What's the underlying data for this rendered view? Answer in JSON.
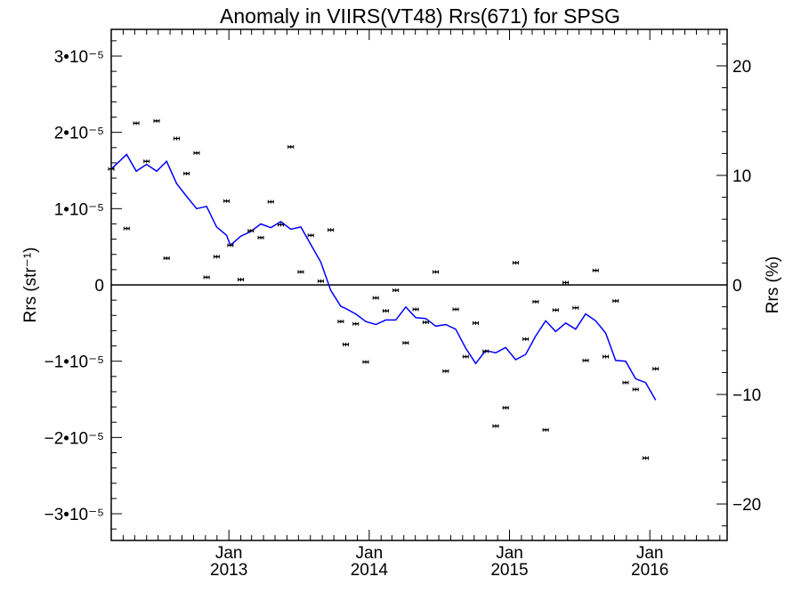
{
  "chart_data": {
    "type": "scatter",
    "title": "Anomaly in VIIRS(VT48) Rrs(671) for SPSG",
    "ylabel": "Rrs (str⁻¹)",
    "y2label": "Rrs (%)",
    "xlim": [
      "2012-03-01",
      "2016-07-20"
    ],
    "ylim": [
      -3.35e-05,
      3.35e-05
    ],
    "y2lim": [
      -23.33,
      23.33
    ],
    "grid": false,
    "legend": "none",
    "zero_line": true,
    "x_ticks": [
      {
        "date": "2013-01-01",
        "label": "Jan",
        "year": "2013"
      },
      {
        "date": "2014-01-01",
        "label": "Jan",
        "year": "2014"
      },
      {
        "date": "2015-01-01",
        "label": "Jan",
        "year": "2015"
      },
      {
        "date": "2016-01-01",
        "label": "Jan",
        "year": "2016"
      }
    ],
    "y_ticks": [
      {
        "value": 3e-05,
        "label": "3•10⁻⁵"
      },
      {
        "value": 2e-05,
        "label": "2•10⁻⁵"
      },
      {
        "value": 1e-05,
        "label": "1•10⁻⁵"
      },
      {
        "value": 0,
        "label": "0"
      },
      {
        "value": -1e-05,
        "label": "−1•10⁻⁵"
      },
      {
        "value": -2e-05,
        "label": "−2•10⁻⁵"
      },
      {
        "value": -3e-05,
        "label": "−3•10⁻⁵"
      }
    ],
    "y2_ticks": [
      {
        "value": 20,
        "label": "20"
      },
      {
        "value": 10,
        "label": "10"
      },
      {
        "value": 0,
        "label": "0"
      },
      {
        "value": -10,
        "label": "−10"
      },
      {
        "value": -20,
        "label": "−20"
      }
    ],
    "series": [
      {
        "style": "error-bar points",
        "color": "#000000",
        "points": [
          {
            "x": "2012-03-01",
            "y": 1.52e-05
          },
          {
            "x": "2012-04-10",
            "y": 7.4e-06
          },
          {
            "x": "2012-05-05",
            "y": 2.12e-05
          },
          {
            "x": "2012-06-01",
            "y": 1.62e-05
          },
          {
            "x": "2012-06-27",
            "y": 2.15e-05
          },
          {
            "x": "2012-07-23",
            "y": 3.5e-06
          },
          {
            "x": "2012-08-18",
            "y": 1.92e-05
          },
          {
            "x": "2012-09-13",
            "y": 1.46e-05
          },
          {
            "x": "2012-10-09",
            "y": 1.73e-05
          },
          {
            "x": "2012-11-04",
            "y": 1e-06
          },
          {
            "x": "2012-11-30",
            "y": 3.7e-06
          },
          {
            "x": "2012-12-26",
            "y": 1.1e-05
          },
          {
            "x": "2013-01-05",
            "y": 5.2e-06
          },
          {
            "x": "2013-02-01",
            "y": 7e-07
          },
          {
            "x": "2013-02-27",
            "y": 7.1e-06
          },
          {
            "x": "2013-03-25",
            "y": 6.2e-06
          },
          {
            "x": "2013-04-20",
            "y": 1.09e-05
          },
          {
            "x": "2013-05-16",
            "y": 7.9e-06
          },
          {
            "x": "2013-06-11",
            "y": 1.81e-05
          },
          {
            "x": "2013-07-07",
            "y": 1.7e-06
          },
          {
            "x": "2013-08-02",
            "y": 6.5e-06
          },
          {
            "x": "2013-08-28",
            "y": 5e-07
          },
          {
            "x": "2013-09-23",
            "y": 7.2e-06
          },
          {
            "x": "2013-10-19",
            "y": -4.8e-06
          },
          {
            "x": "2013-11-01",
            "y": -7.8e-06
          },
          {
            "x": "2013-11-27",
            "y": -5.1e-06
          },
          {
            "x": "2013-12-23",
            "y": -1.01e-05
          },
          {
            "x": "2014-01-18",
            "y": -1.7e-06
          },
          {
            "x": "2014-02-13",
            "y": -3.4e-06
          },
          {
            "x": "2014-03-11",
            "y": -7e-07
          },
          {
            "x": "2014-04-06",
            "y": -7.6e-06
          },
          {
            "x": "2014-05-02",
            "y": -3.2e-06
          },
          {
            "x": "2014-05-28",
            "y": -4.9e-06
          },
          {
            "x": "2014-06-23",
            "y": 1.7e-06
          },
          {
            "x": "2014-07-19",
            "y": -1.13e-05
          },
          {
            "x": "2014-08-14",
            "y": -3.2e-06
          },
          {
            "x": "2014-09-09",
            "y": -9.4e-06
          },
          {
            "x": "2014-10-05",
            "y": -5e-06
          },
          {
            "x": "2014-10-31",
            "y": -8.7e-06
          },
          {
            "x": "2014-11-26",
            "y": -1.85e-05
          },
          {
            "x": "2014-12-22",
            "y": -1.61e-05
          },
          {
            "x": "2015-01-17",
            "y": 2.9e-06
          },
          {
            "x": "2015-02-12",
            "y": -7.1e-06
          },
          {
            "x": "2015-03-10",
            "y": -2.2e-06
          },
          {
            "x": "2015-04-05",
            "y": -1.9e-05
          },
          {
            "x": "2015-05-01",
            "y": -3.3e-06
          },
          {
            "x": "2015-05-27",
            "y": 3e-07
          },
          {
            "x": "2015-06-22",
            "y": -3e-06
          },
          {
            "x": "2015-07-18",
            "y": -9.9e-06
          },
          {
            "x": "2015-08-13",
            "y": 1.9e-06
          },
          {
            "x": "2015-09-08",
            "y": -9.4e-06
          },
          {
            "x": "2015-10-04",
            "y": -2.1e-06
          },
          {
            "x": "2015-10-30",
            "y": -1.28e-05
          },
          {
            "x": "2015-11-25",
            "y": -1.37e-05
          },
          {
            "x": "2015-12-21",
            "y": -2.27e-05
          },
          {
            "x": "2016-01-16",
            "y": -1.1e-05
          }
        ]
      },
      {
        "style": "line",
        "color": "#0000ff",
        "points": [
          {
            "x": "2012-03-01",
            "y": 1.52e-05
          },
          {
            "x": "2012-04-10",
            "y": 1.71e-05
          },
          {
            "x": "2012-05-05",
            "y": 1.49e-05
          },
          {
            "x": "2012-06-01",
            "y": 1.58e-05
          },
          {
            "x": "2012-06-27",
            "y": 1.49e-05
          },
          {
            "x": "2012-07-23",
            "y": 1.62e-05
          },
          {
            "x": "2012-08-18",
            "y": 1.33e-05
          },
          {
            "x": "2012-09-13",
            "y": 1.16e-05
          },
          {
            "x": "2012-10-09",
            "y": 1e-05
          },
          {
            "x": "2012-11-04",
            "y": 1.03e-05
          },
          {
            "x": "2012-11-30",
            "y": 7.6e-06
          },
          {
            "x": "2012-12-26",
            "y": 6.5e-06
          },
          {
            "x": "2013-01-05",
            "y": 5.2e-06
          },
          {
            "x": "2013-02-01",
            "y": 6.4e-06
          },
          {
            "x": "2013-02-27",
            "y": 7e-06
          },
          {
            "x": "2013-03-25",
            "y": 8e-06
          },
          {
            "x": "2013-04-20",
            "y": 7.5e-06
          },
          {
            "x": "2013-05-16",
            "y": 8.3e-06
          },
          {
            "x": "2013-06-11",
            "y": 7.3e-06
          },
          {
            "x": "2013-07-07",
            "y": 7.6e-06
          },
          {
            "x": "2013-08-02",
            "y": 5.3e-06
          },
          {
            "x": "2013-08-28",
            "y": 3e-06
          },
          {
            "x": "2013-09-23",
            "y": -7e-07
          },
          {
            "x": "2013-10-19",
            "y": -2.8e-06
          },
          {
            "x": "2013-11-01",
            "y": -3.1e-06
          },
          {
            "x": "2013-11-27",
            "y": -3.8e-06
          },
          {
            "x": "2013-12-23",
            "y": -4.8e-06
          },
          {
            "x": "2014-01-18",
            "y": -5.2e-06
          },
          {
            "x": "2014-02-13",
            "y": -4.6e-06
          },
          {
            "x": "2014-03-11",
            "y": -4.6e-06
          },
          {
            "x": "2014-04-06",
            "y": -2.9e-06
          },
          {
            "x": "2014-05-02",
            "y": -4.3e-06
          },
          {
            "x": "2014-05-28",
            "y": -4.4e-06
          },
          {
            "x": "2014-06-23",
            "y": -5.4e-06
          },
          {
            "x": "2014-07-19",
            "y": -5.2e-06
          },
          {
            "x": "2014-08-14",
            "y": -5.8e-06
          },
          {
            "x": "2014-09-09",
            "y": -8.3e-06
          },
          {
            "x": "2014-10-05",
            "y": -1.03e-05
          },
          {
            "x": "2014-10-31",
            "y": -8.6e-06
          },
          {
            "x": "2014-11-26",
            "y": -8.9e-06
          },
          {
            "x": "2014-12-22",
            "y": -8.2e-06
          },
          {
            "x": "2015-01-17",
            "y": -9.8e-06
          },
          {
            "x": "2015-02-12",
            "y": -9.1e-06
          },
          {
            "x": "2015-03-10",
            "y": -6.7e-06
          },
          {
            "x": "2015-04-05",
            "y": -4.7e-06
          },
          {
            "x": "2015-05-01",
            "y": -6.1e-06
          },
          {
            "x": "2015-05-27",
            "y": -5e-06
          },
          {
            "x": "2015-06-22",
            "y": -5.8e-06
          },
          {
            "x": "2015-07-18",
            "y": -3.8e-06
          },
          {
            "x": "2015-08-13",
            "y": -4.7e-06
          },
          {
            "x": "2015-09-08",
            "y": -6.3e-06
          },
          {
            "x": "2015-10-04",
            "y": -9.9e-06
          },
          {
            "x": "2015-10-30",
            "y": -1e-05
          },
          {
            "x": "2015-11-25",
            "y": -1.23e-05
          },
          {
            "x": "2015-12-21",
            "y": -1.28e-05
          },
          {
            "x": "2016-01-16",
            "y": -1.51e-05
          }
        ]
      }
    ]
  }
}
